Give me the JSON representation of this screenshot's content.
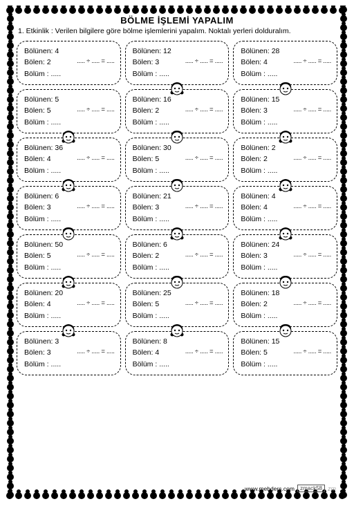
{
  "title": "BÖLME  İŞLEMİ YAPALIM",
  "subtitle": "1. Etkinlik : Verilen bilgilere göre bölme işlemlerini yapalım. Noktalı yerleri dolduralım.",
  "labels": {
    "dividend": "Bölünen:",
    "divisor": "Bölen:",
    "quotient": "Bölüm :",
    "dots": ".....",
    "eq": "..... ÷ ..... = ....."
  },
  "boxes": [
    {
      "dividend": "4",
      "divisor": "2",
      "face": ""
    },
    {
      "dividend": "12",
      "divisor": "3",
      "face": "girl"
    },
    {
      "dividend": "28",
      "divisor": "4",
      "face": "boy"
    },
    {
      "dividend": "5",
      "divisor": "5",
      "face": "girl"
    },
    {
      "dividend": "16",
      "divisor": "2",
      "face": "boy"
    },
    {
      "dividend": "15",
      "divisor": "3",
      "face": "girl"
    },
    {
      "dividend": "36",
      "divisor": "4",
      "face": "girl"
    },
    {
      "dividend": "30",
      "divisor": "5",
      "face": "boy"
    },
    {
      "dividend": "2",
      "divisor": "2",
      "face": "girl"
    },
    {
      "dividend": "6",
      "divisor": "3",
      "face": "boy"
    },
    {
      "dividend": "21",
      "divisor": "3",
      "face": "girl"
    },
    {
      "dividend": "4",
      "divisor": "4",
      "face": "girl"
    },
    {
      "dividend": "50",
      "divisor": "5",
      "face": "girl"
    },
    {
      "dividend": "6",
      "divisor": "2",
      "face": "boy"
    },
    {
      "dividend": "24",
      "divisor": "3",
      "face": "boy"
    },
    {
      "dividend": "20",
      "divisor": "4",
      "face": "girl"
    },
    {
      "dividend": "25",
      "divisor": "5",
      "face": "girl"
    },
    {
      "dividend": "18",
      "divisor": "2",
      "face": "boy"
    },
    {
      "dividend": "3",
      "divisor": "3",
      "face": ""
    },
    {
      "dividend": "8",
      "divisor": "4",
      "face": ""
    },
    {
      "dividend": "15",
      "divisor": "5",
      "face": ""
    }
  ],
  "footer": {
    "site": "www.mebders.com",
    "author": "zmack58",
    "sig": "zm"
  },
  "style": {
    "border_color": "#000000",
    "box_border_color": "#000000",
    "font_main": "Arial"
  }
}
